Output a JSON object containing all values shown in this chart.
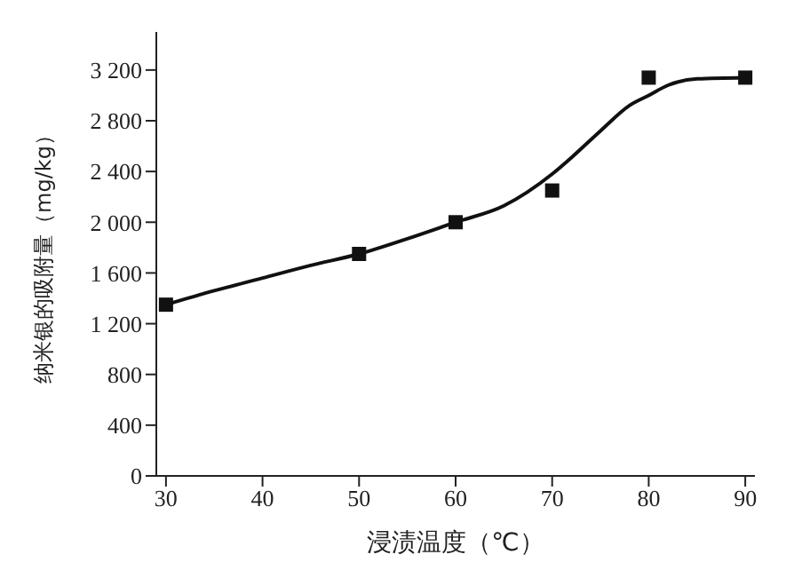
{
  "chart_data": {
    "type": "scatter",
    "xlabel": "浸渍温度（℃）",
    "ylabel": "纳米银的吸附量（mg/kg）",
    "xlim": [
      29,
      91
    ],
    "ylim": [
      0,
      3500
    ],
    "xticks": [
      30,
      40,
      50,
      60,
      70,
      80,
      90
    ],
    "yticks": [
      0,
      400,
      800,
      {
        "value": 1200,
        "label": "1 200"
      },
      {
        "value": 1600,
        "label": "1 600"
      },
      {
        "value": 2000,
        "label": "2 000"
      },
      {
        "value": 2400,
        "label": "2 400"
      },
      {
        "value": 2800,
        "label": "2 800"
      },
      {
        "value": 3200,
        "label": "3 200"
      }
    ],
    "grid": false,
    "legend": false,
    "series": [
      {
        "color": "#111111",
        "marker": "square",
        "x": [
          30,
          50,
          60,
          70,
          80,
          90
        ],
        "values": [
          1350,
          1750,
          2000,
          2250,
          3140,
          3140
        ]
      },
      {
        "type": "line",
        "color": "#111111",
        "marker": "none",
        "line_style": "solid",
        "x": [
          30,
          35,
          40,
          45,
          50,
          55,
          60,
          65,
          70,
          72,
          75,
          78,
          80,
          82,
          85,
          90
        ],
        "values": [
          1350,
          1460,
          1560,
          1660,
          1750,
          1870,
          2000,
          2130,
          2380,
          2510,
          2720,
          2920,
          3000,
          3080,
          3130,
          3140
        ]
      }
    ]
  }
}
